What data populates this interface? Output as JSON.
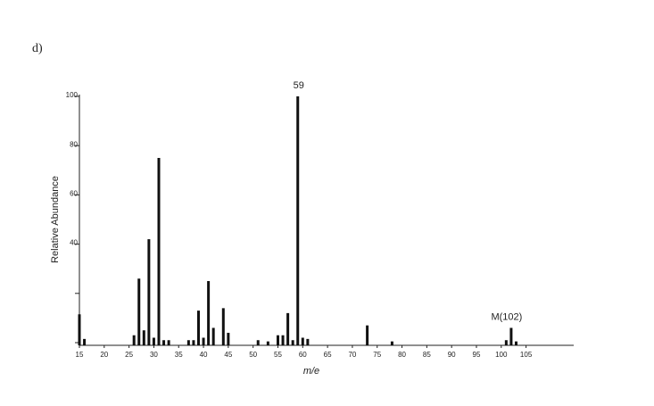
{
  "panel_label": "d)",
  "chart_data": {
    "type": "bar",
    "y_label": "Relative Abundance",
    "x_label": "m/e",
    "x": [
      15,
      16,
      26,
      27,
      28,
      29,
      30,
      31,
      32,
      33,
      37,
      38,
      39,
      40,
      41,
      42,
      44,
      45,
      51,
      53,
      55,
      56,
      57,
      58,
      59,
      60,
      61,
      73,
      78,
      101,
      102,
      103
    ],
    "values": [
      11.5,
      1.5,
      3,
      26,
      5,
      42,
      2,
      75,
      1,
      1,
      1,
      1,
      13,
      2,
      25,
      6,
      14,
      4,
      1,
      0.5,
      3,
      3,
      12,
      1,
      100,
      2,
      1.5,
      7,
      0.5,
      1,
      6,
      0.5
    ],
    "color": "#111111",
    "xlim": [
      15,
      114.6
    ],
    "xticks": [
      15,
      20,
      25,
      30,
      35,
      40,
      45,
      50,
      55,
      60,
      65,
      70,
      75,
      80,
      85,
      90,
      95,
      100,
      105
    ],
    "ylim": [
      0,
      100
    ],
    "yticks": [
      40,
      60,
      80,
      100
    ],
    "yticks_unlabeled": [
      0,
      20
    ],
    "annotations": [
      {
        "text": "59",
        "x": 59
      },
      {
        "text": "M(102)",
        "x": 102
      }
    ]
  }
}
